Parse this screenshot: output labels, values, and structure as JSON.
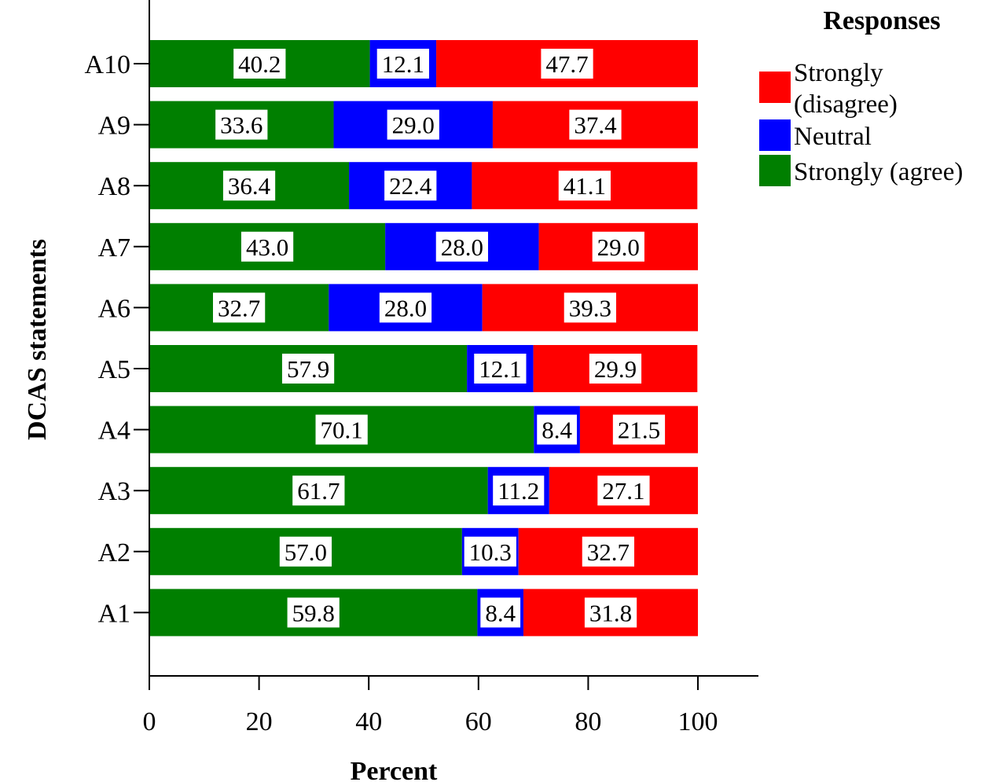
{
  "chart_data": {
    "type": "bar",
    "orientation": "horizontal",
    "stacked": true,
    "xlabel": "Percent",
    "ylabel": "DCAS statements",
    "xlim": [
      0,
      100
    ],
    "xticks": [
      "0",
      "20",
      "40",
      "60",
      "80",
      "100"
    ],
    "grid": false,
    "legend_position": "top-right",
    "legend_title": "Responses",
    "categories": [
      "A10",
      "A9",
      "A8",
      "A7",
      "A6",
      "A5",
      "A4",
      "A3",
      "A2",
      "A1"
    ],
    "series": [
      {
        "name": "Strongly (agree)",
        "color": "#007f00",
        "values": [
          40.2,
          33.6,
          36.4,
          43.0,
          32.7,
          57.9,
          70.1,
          61.7,
          57.0,
          59.8
        ],
        "labels": [
          "40.2",
          "33.6",
          "36.4",
          "43.0",
          "32.7",
          "57.9",
          "70.1",
          "61.7",
          "57.0",
          "59.8"
        ]
      },
      {
        "name": "Neutral",
        "color": "#0000ff",
        "values": [
          12.1,
          29.0,
          22.4,
          28.0,
          28.0,
          12.1,
          8.4,
          11.2,
          10.3,
          8.4
        ],
        "labels": [
          "12.1",
          "29.0",
          "22.4",
          "28.0",
          "28.0",
          "12.1",
          "8.4",
          "11.2",
          "10.3",
          "8.4"
        ]
      },
      {
        "name": "Strongly (disagree)",
        "color": "#ff0000",
        "values": [
          47.7,
          37.4,
          41.1,
          29.0,
          39.3,
          29.9,
          21.5,
          27.1,
          32.7,
          31.8
        ],
        "labels": [
          "47.7",
          "37.4",
          "41.1",
          "29.0",
          "39.3",
          "29.9",
          "21.5",
          "27.1",
          "32.7",
          "31.8"
        ]
      }
    ],
    "legend_entries": [
      {
        "lines": [
          "Strongly",
          "(disagree)"
        ],
        "color": "#ff0000"
      },
      {
        "lines": [
          "Neutral"
        ],
        "color": "#0000ff"
      },
      {
        "lines": [
          "Strongly (agree)"
        ],
        "color": "#007f00"
      }
    ]
  }
}
